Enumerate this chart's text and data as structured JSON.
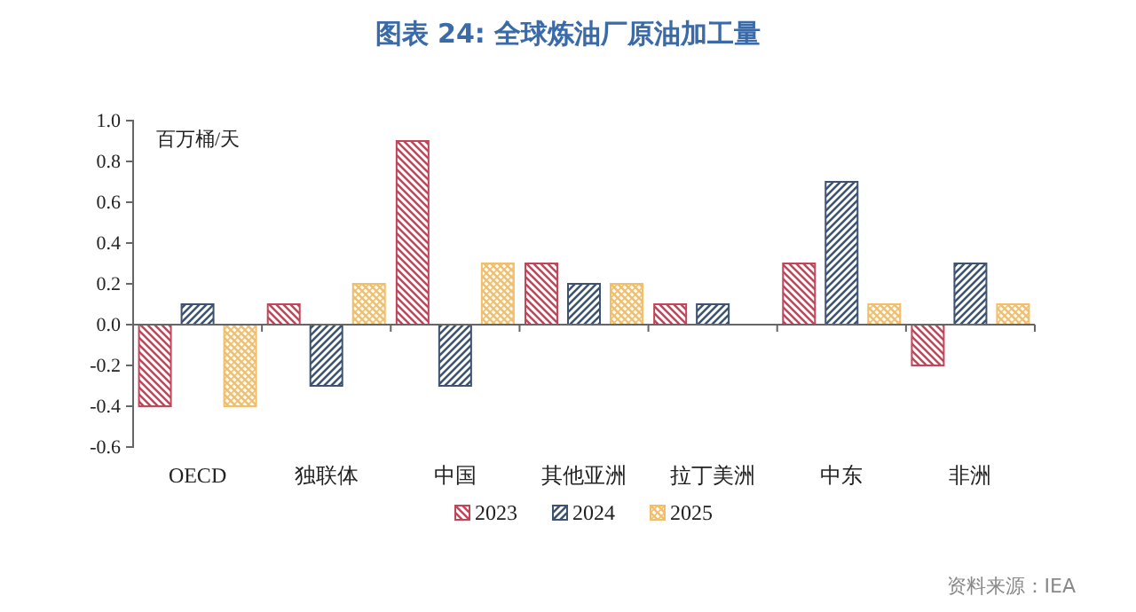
{
  "chart_data": {
    "type": "bar",
    "title": "图表 24: 全球炼油厂原油加工量",
    "ylabel": "百万桶/天",
    "annotations": [
      "资料来源：IEA"
    ],
    "categories": [
      "OECD",
      "独联体",
      "中国",
      "其他亚洲",
      "拉丁美洲",
      "中东",
      "非洲"
    ],
    "series": [
      {
        "name": "2023",
        "color": "#c2465a",
        "values": [
          -0.4,
          0.1,
          0.9,
          0.3,
          0.1,
          0.3,
          -0.2
        ]
      },
      {
        "name": "2024",
        "color": "#3d5370",
        "values": [
          0.1,
          -0.3,
          -0.3,
          0.2,
          0.1,
          0.7,
          0.3
        ]
      },
      {
        "name": "2025",
        "color": "#f2be6a",
        "values": [
          -0.4,
          0.2,
          0.3,
          0.2,
          null,
          0.1,
          0.1
        ]
      }
    ],
    "ylim": [
      -0.6,
      1.0
    ],
    "yticks": [
      {
        "value": -0.6,
        "label": "-0.6"
      },
      {
        "value": -0.4,
        "label": "-0.4"
      },
      {
        "value": -0.2,
        "label": "-0.2"
      },
      {
        "value": 0,
        "label": "0.0"
      },
      {
        "value": 0.2,
        "label": "0.2"
      },
      {
        "value": 0.4,
        "label": "0.4"
      },
      {
        "value": 0.6,
        "label": "0.6"
      },
      {
        "value": 0.8,
        "label": "0.8"
      },
      {
        "value": 1.0,
        "label": "1.0"
      }
    ],
    "legend": "bottom"
  }
}
